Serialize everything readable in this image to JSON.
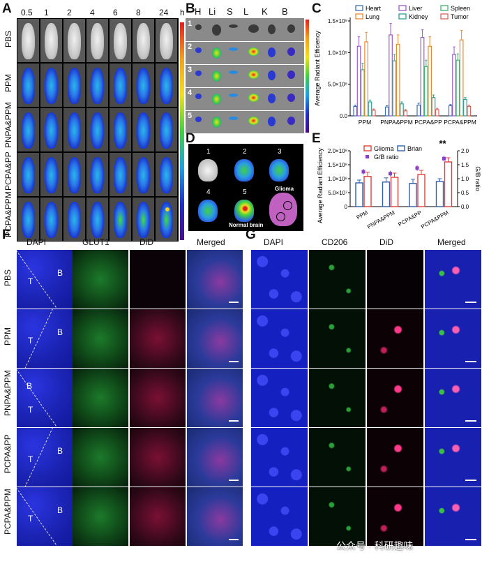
{
  "panels": {
    "A": {
      "label": "A",
      "timepoints": [
        "0.5",
        "1",
        "2",
        "4",
        "6",
        "8",
        "24"
      ],
      "time_unit": "h",
      "groups": [
        "PBS",
        "PPM",
        "PNPA&PPM",
        "PCPA&PP",
        "PCPA&PPM"
      ]
    },
    "B": {
      "label": "B",
      "organs": [
        "H",
        "Li",
        "S",
        "L",
        "K",
        "B"
      ],
      "rows": [
        "1",
        "2",
        "3",
        "4",
        "5"
      ]
    },
    "C": {
      "label": "C",
      "legend": [
        "Heart",
        "Liver",
        "Spleen",
        "Lung",
        "Kidney",
        "Tumor"
      ]
    },
    "D": {
      "label": "D",
      "brains": [
        "1",
        "2",
        "3",
        "4",
        "5"
      ],
      "glioma_label": "Glioma",
      "normal_label": "Normal brain"
    },
    "E": {
      "label": "E",
      "legend_glioma": "Glioma",
      "legend_brain": "Brian",
      "legend_ratio": "G/B ratio",
      "significance": "**"
    },
    "F": {
      "label": "F",
      "columns": [
        "DAPI",
        "GLUT1",
        "DiD",
        "Merged"
      ],
      "rows": [
        "PBS",
        "PPM",
        "PNPA&PPM",
        "PCPA&PP",
        "PCPA&PPM"
      ],
      "region_t": "T",
      "region_b": "B"
    },
    "G": {
      "label": "G",
      "columns": [
        "DAPI",
        "CD206",
        "DiD",
        "Merged"
      ]
    }
  },
  "watermark": "公众号 · 科研趣味",
  "colors": {
    "heart": "#3b6fb6",
    "liver": "#9b59d0",
    "spleen": "#3cb371",
    "lung": "#ee8a2a",
    "kidney": "#2aa198",
    "tumor": "#e0605a",
    "glioma": "#e0403a",
    "brain": "#2f5fb0",
    "ratio": "#8a3fc8",
    "dapi": "#1f2fd0",
    "green": "#1aa63a",
    "red": "#e0206a"
  },
  "chart_data": [
    {
      "type": "bar",
      "panel": "C",
      "ylabel": "Average Radiant Efficiency",
      "ylim": [
        0,
        1500000000.0
      ],
      "yticks": [
        "0.0",
        "5.0×10⁸",
        "1.0×10⁹",
        "1.5×10⁹"
      ],
      "categories": [
        "PPM",
        "PNPA&PPM",
        "PCPA&PP",
        "PCPA&PPM"
      ],
      "series": [
        {
          "name": "Heart",
          "values": [
            150000000.0,
            140000000.0,
            170000000.0,
            160000000.0
          ],
          "errors": [
            20000000.0,
            20000000.0,
            30000000.0,
            20000000.0
          ]
        },
        {
          "name": "Liver",
          "values": [
            1100000000.0,
            1280000000.0,
            1240000000.0,
            970000000.0
          ],
          "errors": [
            150000000.0,
            180000000.0,
            120000000.0,
            120000000.0
          ]
        },
        {
          "name": "Spleen",
          "values": [
            730000000.0,
            870000000.0,
            780000000.0,
            880000000.0
          ],
          "errors": [
            100000000.0,
            100000000.0,
            100000000.0,
            100000000.0
          ]
        },
        {
          "name": "Lung",
          "values": [
            1170000000.0,
            1130000000.0,
            1100000000.0,
            1200000000.0
          ],
          "errors": [
            150000000.0,
            150000000.0,
            150000000.0,
            150000000.0
          ]
        },
        {
          "name": "Kidney",
          "values": [
            220000000.0,
            190000000.0,
            290000000.0,
            260000000.0
          ],
          "errors": [
            30000000.0,
            30000000.0,
            40000000.0,
            30000000.0
          ]
        },
        {
          "name": "Tumor",
          "values": [
            90000000.0,
            80000000.0,
            100000000.0,
            150000000.0
          ],
          "errors": [
            20000000.0,
            20000000.0,
            20000000.0,
            20000000.0
          ]
        }
      ]
    },
    {
      "type": "bar",
      "panel": "E",
      "ylabel": "Average Radiant Efficiency",
      "y2label": "G/B ratio",
      "ylim": [
        0,
        200000000.0
      ],
      "y2lim": [
        0,
        2.0
      ],
      "yticks": [
        "0",
        "5.0×10⁷",
        "1.0×10⁸",
        "1.5×10⁸",
        "2.0×10⁸"
      ],
      "y2ticks": [
        "0.0",
        "0.5",
        "1.0",
        "1.5",
        "2.0"
      ],
      "categories": [
        "PPM",
        "PNPA&PPM",
        "PCPA&PP",
        "PCPA&PPM"
      ],
      "series": [
        {
          "name": "Glioma",
          "values": [
            108000000.0,
            105000000.0,
            115000000.0,
            160000000.0
          ],
          "errors": [
            15000000.0,
            15000000.0,
            15000000.0,
            15000000.0
          ]
        },
        {
          "name": "Brian",
          "values": [
            85000000.0,
            88000000.0,
            83000000.0,
            90000000.0
          ],
          "errors": [
            10000000.0,
            15000000.0,
            15000000.0,
            10000000.0
          ]
        }
      ],
      "ratio": {
        "name": "G/B ratio",
        "values": [
          1.25,
          1.18,
          1.38,
          1.72
        ],
        "errors": [
          0.1,
          0.1,
          0.1,
          0.1
        ]
      }
    }
  ]
}
